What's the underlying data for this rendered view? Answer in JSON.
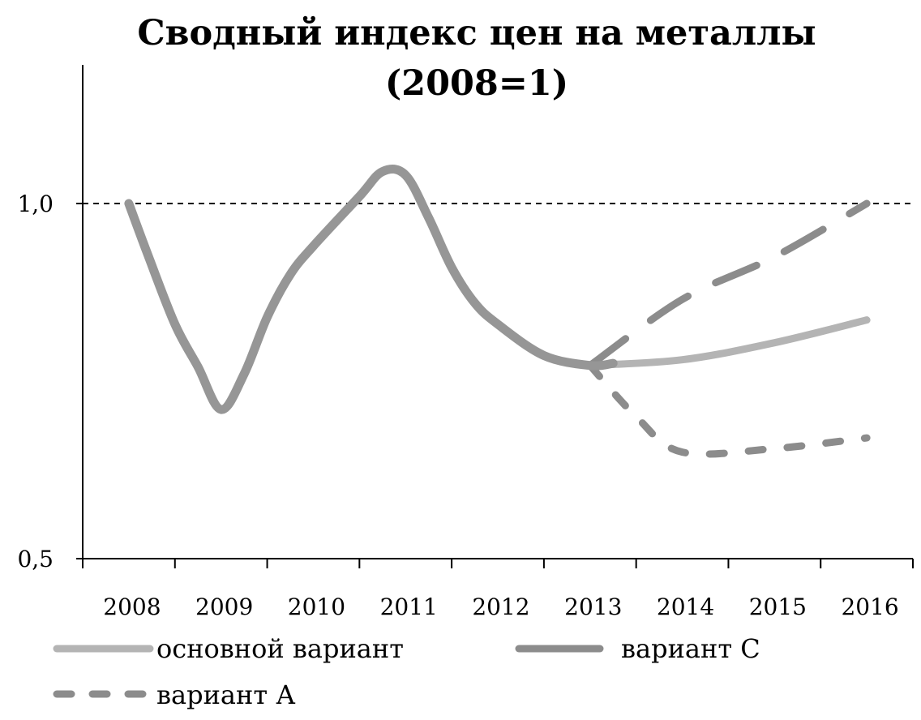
{
  "chart_data": {
    "type": "line",
    "title": "Сводный индекс цен на металлы",
    "subtitle": "(2008=1)",
    "xlabel": "",
    "ylabel": "",
    "categories": [
      "2008",
      "2009",
      "2010",
      "2011",
      "2012",
      "2013",
      "2014",
      "2015",
      "2016"
    ],
    "y_ticks": [
      "1,0",
      "0,5"
    ],
    "ylim": [
      0.5,
      1.2
    ],
    "reference_line": 1.0,
    "grid": false,
    "legend_position": "bottom",
    "history": {
      "x": [
        0,
        0.2,
        0.5,
        0.75,
        1.0,
        1.25,
        1.5,
        1.75,
        2.0,
        2.5,
        2.75,
        3.0,
        3.25,
        3.5,
        3.75,
        4.0,
        4.5,
        5.0,
        5.25
      ],
      "y": [
        1.0,
        0.93,
        0.83,
        0.77,
        0.71,
        0.76,
        0.84,
        0.9,
        0.94,
        1.01,
        1.045,
        1.04,
        0.98,
        0.91,
        0.86,
        0.83,
        0.786,
        0.772,
        0.775
      ]
    },
    "series": [
      {
        "name": "основной вариант",
        "x": [
          5.0,
          6.0,
          7.0,
          8.0
        ],
        "y": [
          0.772,
          0.78,
          0.804,
          0.836
        ],
        "color": "#b4b4b4"
      },
      {
        "name": "вариант С",
        "x": [
          5.0,
          6.0,
          7.0,
          8.0
        ],
        "y": [
          0.772,
          0.865,
          0.925,
          1.0
        ],
        "color": "#8c8c8c"
      },
      {
        "name": "вариант А",
        "x": [
          5.0,
          5.5,
          6.0,
          7.0,
          8.0
        ],
        "y": [
          0.772,
          0.7,
          0.65,
          0.655,
          0.67
        ],
        "color": "#8c8c8c"
      }
    ]
  }
}
